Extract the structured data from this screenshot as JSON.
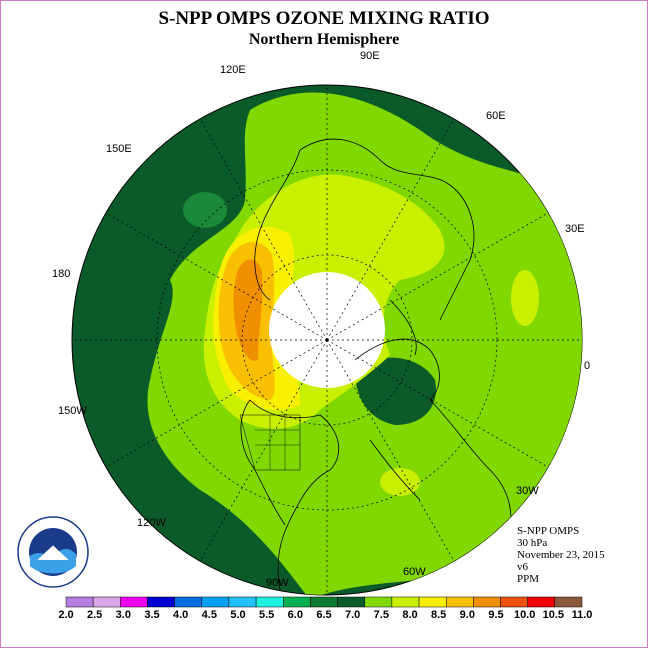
{
  "header": {
    "title": "S-NPP OMPS OZONE MIXING RATIO",
    "subtitle": "Northern Hemisphere"
  },
  "longitude_labels": [
    "90E",
    "60E",
    "30E",
    "0",
    "30W",
    "60W",
    "90W",
    "120W",
    "150W",
    "180",
    "150E",
    "120E"
  ],
  "info": {
    "instrument": "S-NPP OMPS",
    "level": "30 hPa",
    "date": "November 23, 2015",
    "version": "v6",
    "units": "PPM"
  },
  "colorbar": {
    "ticks": [
      "2.0",
      "2.5",
      "3.0",
      "3.5",
      "4.0",
      "4.5",
      "5.0",
      "5.5",
      "6.0",
      "6.5",
      "7.0",
      "7.5",
      "8.0",
      "8.5",
      "9.0",
      "9.5",
      "10.0",
      "10.5",
      "11.0"
    ],
    "colors": [
      "#b57ee0",
      "#d9a8e8",
      "#f000f0",
      "#0000d0",
      "#0070e0",
      "#00a0f0",
      "#20c0f8",
      "#20f0e0",
      "#00b050",
      "#0b7a30",
      "#0b5a2a",
      "#80d800",
      "#c8f000",
      "#f8f000",
      "#f8c000",
      "#f09000",
      "#f05010",
      "#f00000",
      "#8b5a3c"
    ]
  },
  "logo": {
    "text": "NOAA",
    "ring_text": "NATIONAL OCEANIC AND ATMOSPHERIC ADMINISTRATION · U.S. DEPARTMENT OF COMMERCE"
  },
  "map_colors": {
    "dark_green": "#0b5a2a",
    "green": "#1a8a3a",
    "light_green": "#80d800",
    "yellow_green": "#c8f000",
    "yellow": "#f8f000",
    "orange": "#f8c000",
    "dark_orange": "#f09000",
    "no_data": "#ffffff"
  }
}
